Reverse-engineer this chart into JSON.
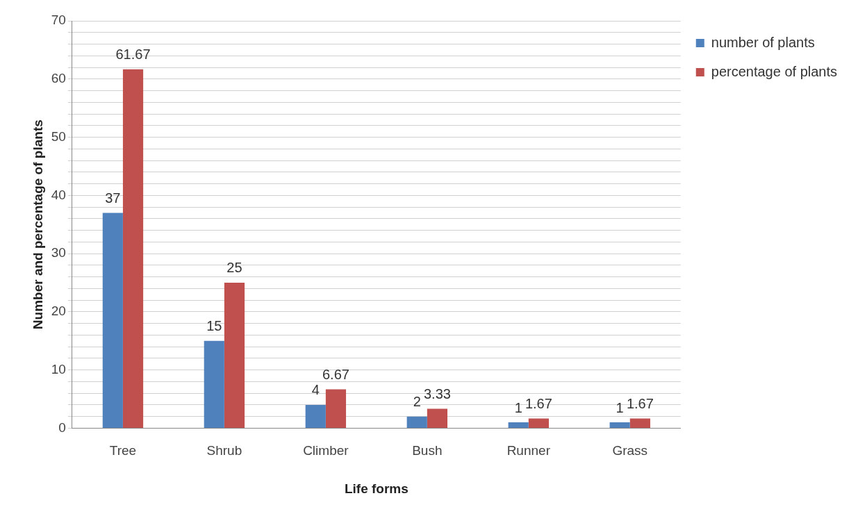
{
  "chart_data": {
    "type": "bar",
    "xlabel": "Life forms",
    "ylabel": "Number and percentage of plants",
    "categories": [
      "Tree",
      "Shrub",
      "Climber",
      "Bush",
      "Runner",
      "Grass"
    ],
    "series": [
      {
        "name": "number of plants",
        "color": "#4f81bd",
        "values": [
          37,
          15,
          4,
          2,
          1,
          1
        ]
      },
      {
        "name": "percentage of plants",
        "color": "#c0504d",
        "values": [
          61.67,
          25,
          6.67,
          3.33,
          1.67,
          1.67
        ]
      }
    ],
    "ylim": [
      0,
      70
    ],
    "yticks": [
      0,
      {
        "value": 2,
        "label": null
      },
      {
        "value": 4,
        "label": null
      },
      {
        "value": 6,
        "label": null
      },
      {
        "value": 8,
        "label": null
      },
      10,
      {
        "value": 12,
        "label": null
      },
      {
        "value": 14,
        "label": null
      },
      {
        "value": 16,
        "label": null
      },
      {
        "value": 18,
        "label": null
      },
      20,
      {
        "value": 22,
        "label": null
      },
      {
        "value": 24,
        "label": null
      },
      {
        "value": 26,
        "label": null
      },
      {
        "value": 28,
        "label": null
      },
      30,
      {
        "value": 32,
        "label": null
      },
      {
        "value": 34,
        "label": null
      },
      {
        "value": 36,
        "label": null
      },
      {
        "value": 38,
        "label": null
      },
      40,
      {
        "value": 42,
        "label": null
      },
      {
        "value": 44,
        "label": null
      },
      {
        "value": 46,
        "label": null
      },
      {
        "value": 48,
        "label": null
      },
      50,
      {
        "value": 52,
        "label": null
      },
      {
        "value": 54,
        "label": null
      },
      {
        "value": 56,
        "label": null
      },
      {
        "value": 58,
        "label": null
      },
      60,
      {
        "value": 62,
        "label": null
      },
      {
        "value": 64,
        "label": null
      },
      {
        "value": 66,
        "label": null
      },
      {
        "value": 68,
        "label": null
      },
      70
    ],
    "grid": "y",
    "legend": "right",
    "data_labels": true
  }
}
